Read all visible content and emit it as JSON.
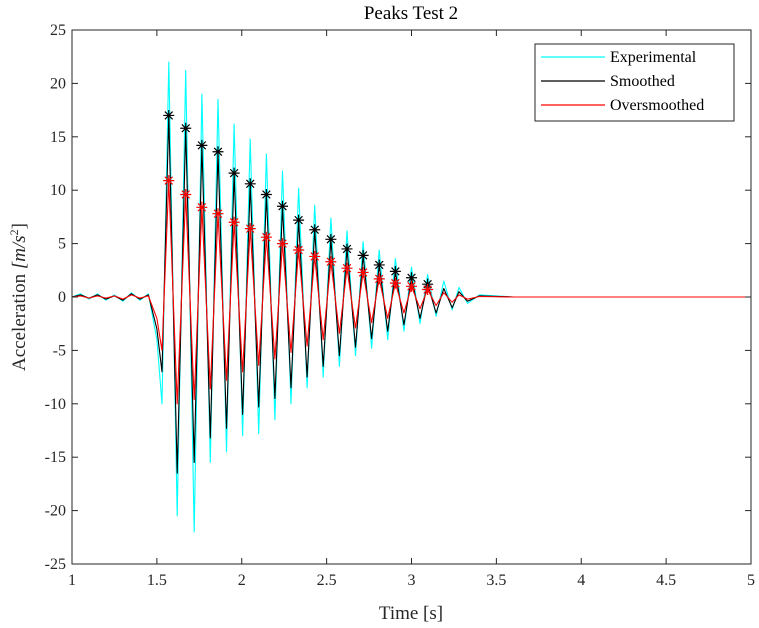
{
  "chart_data": {
    "type": "line",
    "title": "Peaks Test 2",
    "xlabel": "Time [s]",
    "ylabel_prefix": "Acceleration ",
    "ylabel_unit_base": "[m/s",
    "ylabel_unit_exp": "2",
    "ylabel_unit_close": "]",
    "xlim": [
      1,
      5
    ],
    "ylim": [
      -25,
      25
    ],
    "xticks": [
      1,
      1.5,
      2,
      2.5,
      3,
      3.5,
      4,
      4.5,
      5
    ],
    "xtick_labels": [
      "1",
      "1.5",
      "2",
      "2.5",
      "3",
      "3.5",
      "4",
      "4.5",
      "5"
    ],
    "yticks": [
      25,
      20,
      15,
      10,
      5,
      0,
      -5,
      -10,
      -15,
      -20,
      -25
    ],
    "ytick_labels": [
      "25",
      "20",
      "15",
      "10",
      "5",
      "0",
      "-5",
      "-10",
      "-15",
      "-20",
      "-25"
    ],
    "grid": false,
    "legend_position": "top-right",
    "series": [
      {
        "name": "Experimental",
        "color": "#00ffff",
        "x": [
          1.0,
          1.05,
          1.1,
          1.15,
          1.2,
          1.25,
          1.3,
          1.35,
          1.4,
          1.45,
          1.5,
          1.53,
          1.57,
          1.62,
          1.67,
          1.72,
          1.765,
          1.815,
          1.86,
          1.91,
          1.955,
          2.005,
          2.05,
          2.1,
          2.145,
          2.195,
          2.24,
          2.29,
          2.335,
          2.385,
          2.43,
          2.48,
          2.525,
          2.575,
          2.62,
          2.67,
          2.715,
          2.765,
          2.81,
          2.86,
          2.905,
          2.955,
          3.0,
          3.05,
          3.095,
          3.145,
          3.19,
          3.24,
          3.28,
          3.33,
          3.4,
          3.6,
          4.0,
          4.5,
          5.0
        ],
        "y": [
          0,
          0.3,
          -0.2,
          0.3,
          -0.3,
          0.2,
          -0.4,
          0.4,
          -0.3,
          0.3,
          -4,
          -10,
          22,
          -20.5,
          21.2,
          -22,
          19,
          -15.5,
          18.5,
          -14.5,
          16.2,
          -13,
          14.8,
          -12.8,
          13.4,
          -11.5,
          11.8,
          -10,
          10.2,
          -8.5,
          8.6,
          -7.5,
          7.4,
          -6.5,
          6.2,
          -5.5,
          5.2,
          -4.8,
          4.4,
          -4,
          3.6,
          -3.2,
          2.8,
          -2.5,
          2.1,
          -1.8,
          1.5,
          -1.2,
          0.9,
          -0.6,
          0.2,
          0,
          0,
          0,
          0
        ]
      },
      {
        "name": "Smoothed",
        "color": "#000000",
        "x": [
          1.0,
          1.05,
          1.1,
          1.15,
          1.2,
          1.25,
          1.3,
          1.35,
          1.4,
          1.45,
          1.5,
          1.53,
          1.57,
          1.62,
          1.67,
          1.72,
          1.765,
          1.815,
          1.86,
          1.91,
          1.955,
          2.005,
          2.05,
          2.1,
          2.145,
          2.195,
          2.24,
          2.29,
          2.335,
          2.385,
          2.43,
          2.48,
          2.525,
          2.575,
          2.62,
          2.67,
          2.715,
          2.765,
          2.81,
          2.86,
          2.905,
          2.955,
          3.0,
          3.05,
          3.095,
          3.145,
          3.19,
          3.24,
          3.28,
          3.33,
          3.4,
          3.6,
          4.0,
          4.5,
          5.0
        ],
        "y": [
          0,
          0.2,
          -0.1,
          0.2,
          -0.2,
          0.1,
          -0.3,
          0.3,
          -0.2,
          0.2,
          -3,
          -7,
          17,
          -16.5,
          15.8,
          -15.5,
          14.2,
          -13.2,
          13.6,
          -12.3,
          11.6,
          -11,
          10.6,
          -10.3,
          9.6,
          -9.5,
          8.5,
          -8.5,
          7.2,
          -7.5,
          6.3,
          -6.5,
          5.4,
          -5.5,
          4.5,
          -4.7,
          3.9,
          -3.9,
          3.0,
          -3.2,
          2.4,
          -2.6,
          1.8,
          -2.0,
          1.2,
          -1.5,
          0.8,
          -1.0,
          0.5,
          -0.4,
          0.1,
          0,
          0,
          0,
          0
        ]
      },
      {
        "name": "Oversmoothed",
        "color": "#ff0000",
        "x": [
          1.0,
          1.05,
          1.1,
          1.15,
          1.2,
          1.25,
          1.3,
          1.35,
          1.4,
          1.45,
          1.5,
          1.53,
          1.57,
          1.62,
          1.67,
          1.72,
          1.765,
          1.815,
          1.86,
          1.91,
          1.955,
          2.005,
          2.05,
          2.1,
          2.145,
          2.195,
          2.24,
          2.29,
          2.335,
          2.385,
          2.43,
          2.48,
          2.525,
          2.575,
          2.62,
          2.67,
          2.715,
          2.765,
          2.81,
          2.86,
          2.905,
          2.955,
          3.0,
          3.05,
          3.095,
          3.145,
          3.19,
          3.24,
          3.28,
          3.33,
          3.4,
          3.6,
          4.0,
          4.5,
          5.0
        ],
        "y": [
          0,
          0.1,
          -0.1,
          0.1,
          -0.1,
          0.1,
          -0.2,
          0.2,
          -0.1,
          0.1,
          -2,
          -5,
          10.9,
          -10,
          9.6,
          -9.6,
          8.4,
          -8.6,
          7.8,
          -7.8,
          7.0,
          -7.0,
          6.4,
          -6.4,
          5.6,
          -5.8,
          5.0,
          -5.2,
          4.4,
          -4.6,
          3.8,
          -4.0,
          3.3,
          -3.4,
          2.7,
          -2.9,
          2.3,
          -2.4,
          1.7,
          -2.0,
          1.3,
          -1.5,
          1.0,
          -1.1,
          0.7,
          -0.8,
          0.4,
          -0.5,
          0.2,
          -0.2,
          0.05,
          0,
          0,
          0,
          0
        ]
      }
    ],
    "peak_markers": [
      {
        "name": "Smoothed peaks",
        "color": "#000000",
        "x": [
          1.57,
          1.67,
          1.765,
          1.86,
          1.955,
          2.05,
          2.145,
          2.24,
          2.335,
          2.43,
          2.525,
          2.62,
          2.715,
          2.81,
          2.905,
          3.0,
          3.095
        ],
        "y": [
          17.0,
          15.8,
          14.2,
          13.6,
          11.6,
          10.6,
          9.6,
          8.5,
          7.2,
          6.3,
          5.4,
          4.5,
          3.9,
          3.0,
          2.4,
          1.8,
          1.2
        ]
      },
      {
        "name": "Oversmoothed peaks",
        "color": "#ff0000",
        "x": [
          1.57,
          1.67,
          1.765,
          1.86,
          1.955,
          2.05,
          2.145,
          2.24,
          2.335,
          2.43,
          2.525,
          2.62,
          2.715,
          2.81,
          2.905,
          3.0,
          3.095
        ],
        "y": [
          10.9,
          9.6,
          8.4,
          7.8,
          7.0,
          6.4,
          5.6,
          5.0,
          4.4,
          3.8,
          3.3,
          2.7,
          2.3,
          1.7,
          1.3,
          1.0,
          0.7
        ]
      }
    ]
  }
}
